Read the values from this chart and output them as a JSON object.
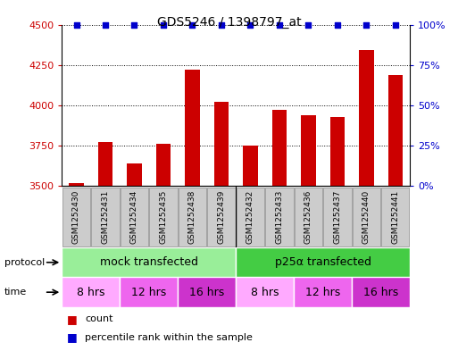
{
  "title": "GDS5246 / 1398797_at",
  "samples": [
    "GSM1252430",
    "GSM1252431",
    "GSM1252434",
    "GSM1252435",
    "GSM1252438",
    "GSM1252439",
    "GSM1252432",
    "GSM1252433",
    "GSM1252436",
    "GSM1252437",
    "GSM1252440",
    "GSM1252441"
  ],
  "counts": [
    3520,
    3770,
    3640,
    3760,
    4220,
    4020,
    3750,
    3970,
    3940,
    3930,
    4340,
    4190
  ],
  "percentiles": [
    100,
    100,
    100,
    100,
    100,
    100,
    100,
    100,
    100,
    100,
    100,
    100
  ],
  "bar_color": "#cc0000",
  "percentile_color": "#0000cc",
  "ylim_left": [
    3500,
    4500
  ],
  "ylim_right": [
    0,
    100
  ],
  "yticks_left": [
    3500,
    3750,
    4000,
    4250,
    4500
  ],
  "yticks_right": [
    0,
    25,
    50,
    75,
    100
  ],
  "ytick_labels_right": [
    "0%",
    "25%",
    "50%",
    "75%",
    "100%"
  ],
  "protocol_groups": [
    {
      "label": "mock transfected",
      "start": 0,
      "end": 6,
      "color": "#99ee99"
    },
    {
      "label": "p25α transfected",
      "start": 6,
      "end": 12,
      "color": "#44cc44"
    }
  ],
  "time_groups": [
    {
      "label": "8 hrs",
      "start": 0,
      "end": 2,
      "color": "#ffaaff"
    },
    {
      "label": "12 hrs",
      "start": 2,
      "end": 4,
      "color": "#ee66ee"
    },
    {
      "label": "16 hrs",
      "start": 4,
      "end": 6,
      "color": "#cc33cc"
    },
    {
      "label": "8 hrs",
      "start": 6,
      "end": 8,
      "color": "#ffaaff"
    },
    {
      "label": "12 hrs",
      "start": 8,
      "end": 10,
      "color": "#ee66ee"
    },
    {
      "label": "16 hrs",
      "start": 10,
      "end": 12,
      "color": "#cc33cc"
    }
  ],
  "bar_width": 0.5,
  "background_color": "#ffffff",
  "legend_count_color": "#cc0000",
  "legend_percentile_color": "#0000cc",
  "sample_box_color": "#cccccc",
  "sample_box_edgecolor": "#888888"
}
